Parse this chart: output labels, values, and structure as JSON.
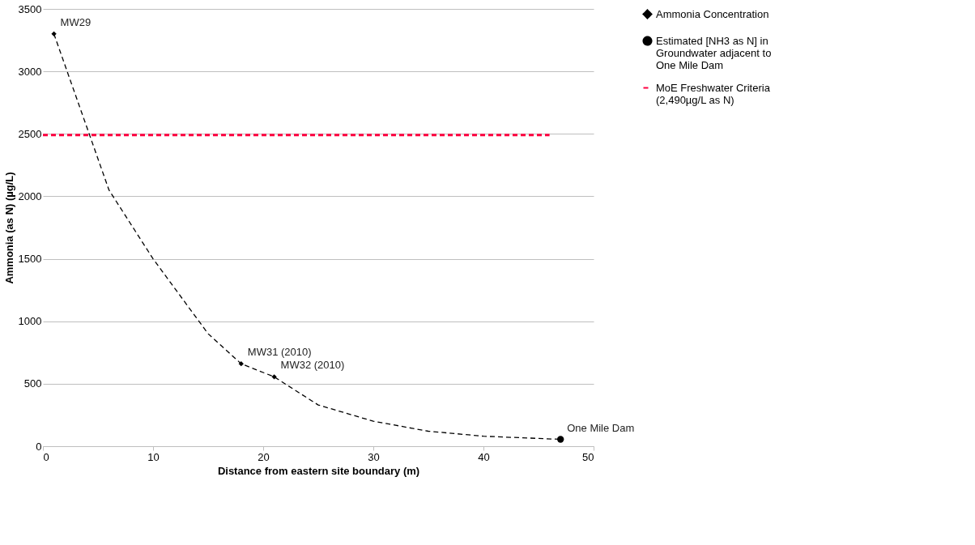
{
  "chart_data": {
    "type": "scatter",
    "xlabel": "Distance from eastern site boundary (m)",
    "ylabel": "Ammonia (as N)    (µg/L)",
    "xlim": [
      0,
      50
    ],
    "xticks": [
      0,
      10,
      20,
      30,
      40,
      50
    ],
    "ylim": [
      0,
      3500
    ],
    "yticks": [
      0,
      500,
      1000,
      1500,
      2000,
      2500,
      3000,
      3500
    ],
    "grid": "y",
    "legend": "right",
    "series": [
      {
        "name": "Ammonia Concentration",
        "type": "scatter",
        "marker": "diamond",
        "color": "#000000",
        "x": [
          1,
          18,
          21
        ],
        "values": [
          3300,
          660,
          555
        ]
      },
      {
        "name": "Estimated [NH3 as N] in Groundwater adjacent to One Mile Dam",
        "type": "scatter",
        "marker": "circle",
        "color": "#000000",
        "x": [
          47
        ],
        "values": [
          55
        ]
      },
      {
        "name": "MoE Freshwater Criteria (2,490µg/L as N)",
        "type": "line",
        "line_style": "dashed",
        "color": "#ff0040",
        "x": [
          0,
          46
        ],
        "values": [
          2490,
          2490
        ]
      },
      {
        "type": "line",
        "line_style": "dashed",
        "color": "#000000",
        "x": [
          1,
          4,
          6,
          10,
          15,
          18,
          21,
          25,
          30,
          35,
          40,
          47
        ],
        "values": [
          3300,
          2550,
          2050,
          1500,
          900,
          660,
          555,
          330,
          200,
          120,
          80,
          55
        ]
      }
    ],
    "annotations": [
      {
        "text": "MW29",
        "x": 1,
        "y": 3300
      },
      {
        "text": "MW31 (2010)",
        "x": 18,
        "y": 660
      },
      {
        "text": "MW32 (2010)",
        "x": 21,
        "y": 555
      },
      {
        "text": "One Mile Dam",
        "x": 47,
        "y": 55
      }
    ]
  }
}
